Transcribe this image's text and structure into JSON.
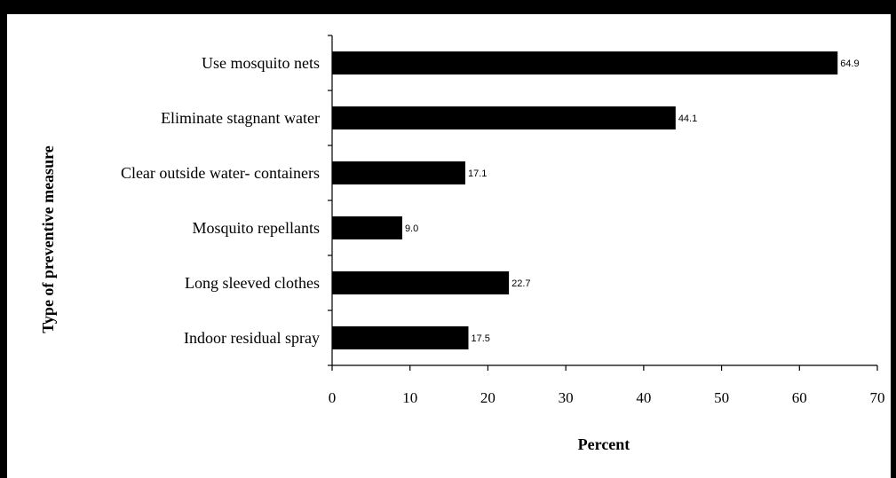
{
  "chart_data": {
    "type": "bar",
    "orientation": "horizontal",
    "categories": [
      "Use  mosquito nets",
      "Eliminate stagnant water",
      "Clear outside water- containers",
      "Mosquito repellants",
      "Long sleeved clothes",
      "Indoor residual spray"
    ],
    "values": [
      64.9,
      44.1,
      17.1,
      9.0,
      22.7,
      17.5
    ],
    "value_labels": [
      "64.9",
      "44.1",
      "17.1",
      "9.0",
      "22.7",
      "17.5"
    ],
    "title": "",
    "xlabel": "Percent",
    "ylabel": "Type of preventive measure",
    "xlim": [
      0,
      70
    ],
    "xticks": [
      0,
      10,
      20,
      30,
      40,
      50,
      60,
      70
    ],
    "grid": false,
    "legend": "none",
    "bar_color": "#000000"
  }
}
